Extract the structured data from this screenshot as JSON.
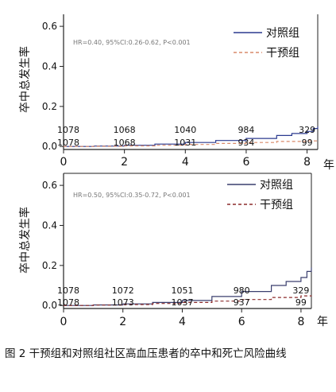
{
  "chart_data": [
    {
      "type": "line",
      "ylabel": "卒中总发生率",
      "x_unit": "年",
      "xticks": [
        0,
        2,
        4,
        6,
        8
      ],
      "yticks": [
        0.0,
        0.2,
        0.4,
        0.6
      ],
      "xlim": [
        0,
        8.35
      ],
      "ylim": [
        -0.015,
        0.66
      ],
      "annotation": "HR=0.40, 95%CI:0.26-0.62, P<0.001",
      "legend_position": "top-right",
      "series": [
        {
          "name": "对照组",
          "color": "#2b3a8f",
          "dash": "solid",
          "x": [
            0,
            1,
            2,
            3,
            4,
            5,
            6,
            7,
            7.5,
            8,
            8.2,
            8.35
          ],
          "y": [
            0,
            0.002,
            0.006,
            0.012,
            0.02,
            0.03,
            0.04,
            0.055,
            0.065,
            0.075,
            0.09,
            0.1
          ]
        },
        {
          "name": "干预组",
          "color": "#d98a6a",
          "dash": "dashed",
          "x": [
            0,
            1,
            2,
            3,
            4,
            5,
            6,
            7,
            8,
            8.35
          ],
          "y": [
            0,
            0.001,
            0.003,
            0.006,
            0.01,
            0.015,
            0.02,
            0.025,
            0.028,
            0.03
          ]
        }
      ],
      "risk_table": {
        "row1": [
          "1078",
          "1068",
          "1040",
          "984",
          "329"
        ],
        "row2": [
          "1078",
          "1068",
          "1031",
          "934",
          "99"
        ]
      }
    },
    {
      "type": "line",
      "ylabel": "卒中总发生率",
      "x_unit": "年",
      "xticks": [
        0,
        2,
        4,
        6,
        8
      ],
      "yticks": [
        0.0,
        0.2,
        0.4,
        0.6
      ],
      "xlim": [
        0,
        8.35
      ],
      "ylim": [
        -0.015,
        0.66
      ],
      "annotation": "HR=0.50, 95%CI:0.35-0.72, P<0.001",
      "legend_position": "top-right",
      "series": [
        {
          "name": "对照组",
          "color": "#3a3f6e",
          "dash": "solid",
          "x": [
            0,
            1,
            2,
            3,
            4,
            5,
            6,
            7,
            7.5,
            8,
            8.2,
            8.35
          ],
          "y": [
            0,
            0.003,
            0.008,
            0.015,
            0.025,
            0.045,
            0.07,
            0.1,
            0.12,
            0.14,
            0.17,
            0.19
          ]
        },
        {
          "name": "干预组",
          "color": "#8b2a2a",
          "dash": "dashed",
          "x": [
            0,
            1,
            2,
            3,
            4,
            5,
            6,
            7,
            8,
            8.35
          ],
          "y": [
            0,
            0.002,
            0.005,
            0.01,
            0.015,
            0.022,
            0.03,
            0.04,
            0.048,
            0.05
          ]
        }
      ],
      "risk_table": {
        "row1": [
          "1078",
          "1072",
          "1051",
          "980",
          "329"
        ],
        "row2": [
          "1078",
          "1073",
          "1037",
          "937",
          "99"
        ]
      }
    }
  ],
  "caption": "图 2 干预组和对照组社区高血压患者的卒中和死亡风险曲线"
}
